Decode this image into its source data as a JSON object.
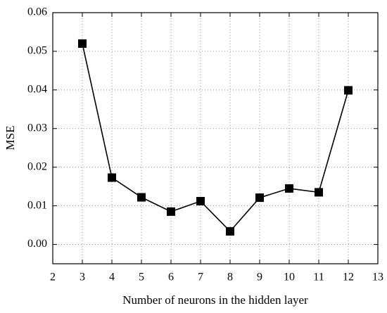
{
  "chart_data": {
    "type": "line",
    "x_label": "Number of neurons in the hidden layer",
    "y_label": "MSE",
    "x": [
      3,
      4,
      5,
      6,
      7,
      8,
      9,
      10,
      11,
      12
    ],
    "series": [
      {
        "color": "#000000",
        "values": [
          0.052,
          0.0173,
          0.0122,
          0.0085,
          0.0112,
          0.0034,
          0.0121,
          0.0145,
          0.0135,
          0.0399
        ]
      }
    ],
    "xlim": [
      2,
      13
    ],
    "xticks": [
      2,
      3,
      4,
      5,
      6,
      7,
      8,
      9,
      10,
      11,
      12,
      13
    ],
    "ylim": [
      -0.005,
      0.06
    ],
    "yticks": [
      {
        "value": 0,
        "label": "0.00"
      },
      0.01,
      0.02,
      0.03,
      0.04,
      0.05,
      0.06
    ],
    "grid": true
  }
}
